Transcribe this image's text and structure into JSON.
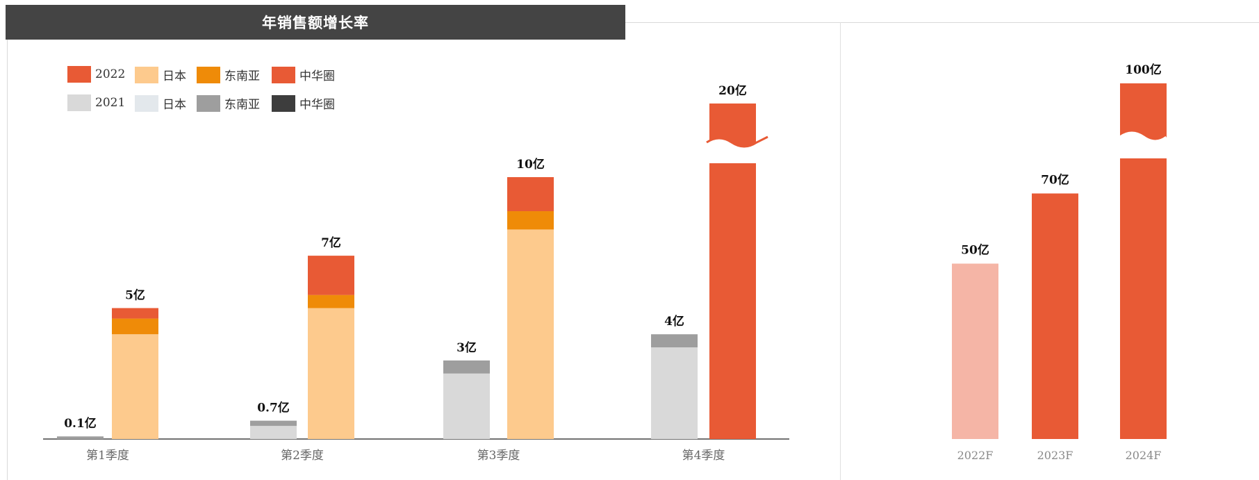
{
  "title": "年销售额增长率",
  "legend": {
    "rows": [
      [
        {
          "label": "2022",
          "color": "#e85a35"
        },
        {
          "label": "日本",
          "color": "#fdca8d"
        },
        {
          "label": "东南亚",
          "color": "#ef8b08"
        },
        {
          "label": "中华圈",
          "color": "#e85a35"
        }
      ],
      [
        {
          "label": "2021",
          "color": "#d9d9d9"
        },
        {
          "label": "日本",
          "color": "#e3e8ec"
        },
        {
          "label": "东南亚",
          "color": "#9e9e9e"
        },
        {
          "label": "中华圈",
          "color": "#3d3d3d"
        }
      ]
    ]
  },
  "chart_data": [
    {
      "type": "bar",
      "stacked": true,
      "axis_break": "top of 第4季度 2022 bar",
      "categories": [
        "第1季度",
        "第2季度",
        "第3季度",
        "第4季度"
      ],
      "series": [
        {
          "name": "2021",
          "group": "2021",
          "color": "#d9d9d9",
          "values": [
            0,
            0.5,
            2.5,
            3.5
          ]
        },
        {
          "name": "东南亚",
          "group": "2021",
          "color": "#9e9e9e",
          "values": [
            0.1,
            0.2,
            0.5,
            0.5
          ]
        },
        {
          "name": "日本",
          "group": "2022",
          "color": "#fdca8d",
          "values": [
            4.0,
            5.0,
            8.0,
            0
          ]
        },
        {
          "name": "东南亚",
          "group": "2022",
          "color": "#ef8b08",
          "values": [
            0.6,
            0.5,
            0.7,
            0
          ]
        },
        {
          "name": "中华圈",
          "group": "2022",
          "color": "#e85a35",
          "values": [
            0.4,
            1.5,
            1.3,
            20
          ]
        }
      ],
      "totals": {
        "2021": [
          "0.1亿",
          "0.7亿",
          "3亿",
          "4亿"
        ],
        "2022": [
          "5亿",
          "7亿",
          "10亿",
          "20亿"
        ]
      },
      "ylim": [
        0,
        12.5
      ]
    },
    {
      "type": "bar",
      "axis_break": "top of 2024F bar",
      "categories": [
        "2022F",
        "2023F",
        "2024F"
      ],
      "values": [
        50,
        70,
        100
      ],
      "data_labels": [
        "50亿",
        "70亿",
        "100亿"
      ],
      "colors": [
        "#f5b5a6",
        "#e85a35",
        "#e85a35"
      ],
      "ylim": [
        0,
        95
      ]
    }
  ]
}
